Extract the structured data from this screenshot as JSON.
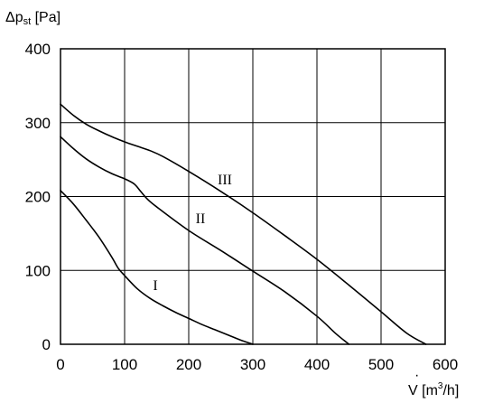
{
  "chart_data": {
    "type": "line",
    "ylabel": {
      "prefix": "Δp",
      "subscript": "st",
      "unit": "[Pa]"
    },
    "xlabel": {
      "symbol": "V",
      "unit_open": "[m",
      "unit_sup": "3",
      "unit_close": "/h]"
    },
    "xlim": [
      0,
      600
    ],
    "ylim": [
      0,
      400
    ],
    "x_ticks": [
      "0",
      "100",
      "200",
      "300",
      "400",
      "500",
      "600"
    ],
    "y_ticks": [
      "0",
      "100",
      "200",
      "300",
      "400"
    ],
    "grid": true,
    "series": [
      {
        "name": "I",
        "x": [
          0,
          20,
          40,
          60,
          80,
          90,
          100,
          120,
          140,
          160,
          180,
          200,
          220,
          240,
          260,
          280,
          300
        ],
        "y": [
          208,
          190,
          168,
          145,
          118,
          103,
          93,
          75,
          62,
          52,
          43,
          35,
          27,
          20,
          13,
          6,
          0
        ]
      },
      {
        "name": "II",
        "x": [
          0,
          20,
          40,
          60,
          80,
          100,
          115,
          125,
          135,
          150,
          200,
          250,
          300,
          350,
          400,
          430,
          450
        ],
        "y": [
          281,
          265,
          251,
          240,
          231,
          224,
          217,
          207,
          197,
          186,
          154,
          127,
          99,
          71,
          38,
          14,
          0
        ]
      },
      {
        "name": "III",
        "x": [
          0,
          20,
          40,
          60,
          80,
          100,
          120,
          140,
          160,
          200,
          250,
          300,
          350,
          400,
          450,
          500,
          540,
          570
        ],
        "y": [
          325,
          310,
          298,
          289,
          281,
          274,
          268,
          262,
          254,
          234,
          207,
          178,
          147,
          115,
          80,
          44,
          15,
          0
        ]
      }
    ]
  }
}
